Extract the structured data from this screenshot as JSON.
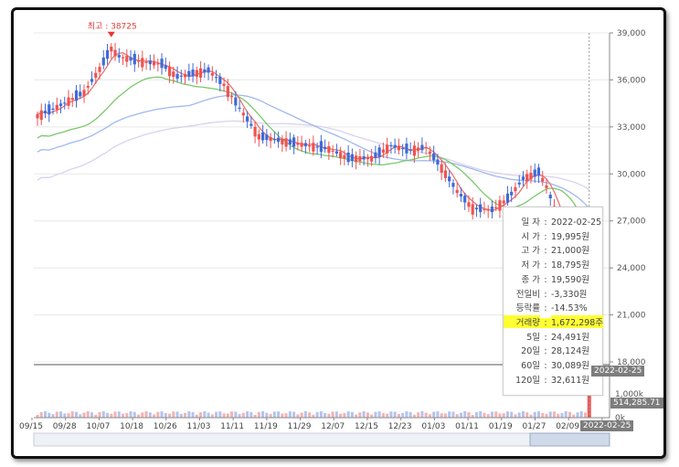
{
  "colors": {
    "up": "#ef5350",
    "down": "#3f6ad8",
    "ma5": "#e57373",
    "ma20": "#7bc86c",
    "ma60": "#9fb8ef",
    "ma120": "#d8d2ee",
    "grid": "#e8e8e8",
    "axis": "#888888"
  },
  "price_axis": {
    "min": 18000,
    "max": 39000,
    "ticks": [
      "39,000",
      "36,000",
      "33,000",
      "30,000",
      "27,000",
      "24,000",
      "21,000",
      "18,000"
    ]
  },
  "volume_axis": {
    "ticks": [
      "10k",
      "1,000k",
      "0k"
    ]
  },
  "x_axis": {
    "labels": [
      "09/15",
      "09/28",
      "10/07",
      "10/18",
      "10/26",
      "11/03",
      "11/11",
      "11/19",
      "11/29",
      "12/07",
      "12/15",
      "12/23",
      "01/03",
      "01/11",
      "01/19",
      "01/27",
      "02/09",
      "02/"
    ]
  },
  "max_marker": {
    "label": "최고 : 38725",
    "value": 38725
  },
  "tooltip": {
    "rows": [
      {
        "key": "일 자",
        "value": "2022-02-25"
      },
      {
        "key": "시 가",
        "value": "19,995원"
      },
      {
        "key": "고 가",
        "value": "21,000원"
      },
      {
        "key": "저 가",
        "value": "18,795원"
      },
      {
        "key": "종 가",
        "value": "19,590원"
      },
      {
        "key": "전일비",
        "value": "-3,330원"
      },
      {
        "key": "등락률",
        "value": "-14.53%"
      },
      {
        "key": "거래량",
        "value": "1,672,298주"
      },
      {
        "key": "5일",
        "value": "24,491원"
      },
      {
        "key": "20일",
        "value": "28,124원"
      },
      {
        "key": "60일",
        "value": "30,089원"
      },
      {
        "key": "120일",
        "value": "32,611원"
      }
    ]
  },
  "crosshair": {
    "date_top": "2022-02-25",
    "volume_value": "514,285.71",
    "date_bottom": "2022-02-25"
  }
}
